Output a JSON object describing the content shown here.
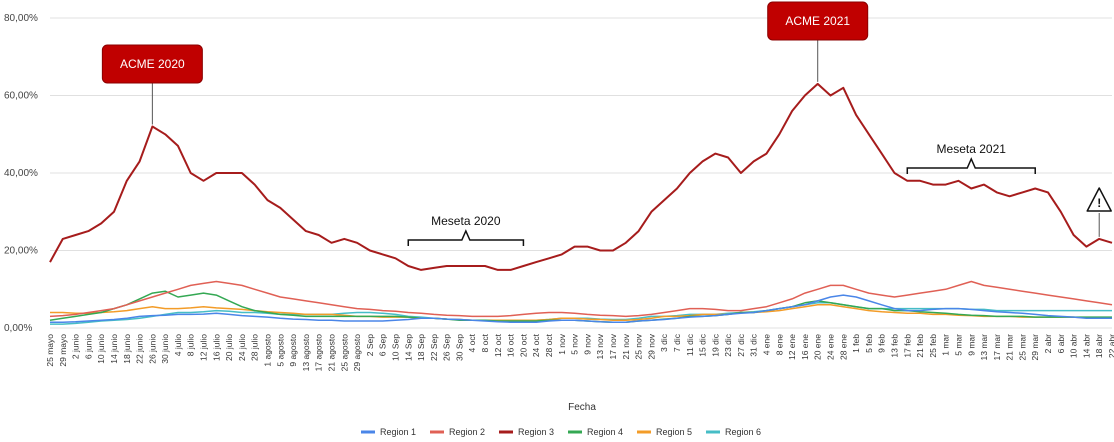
{
  "chart_data": {
    "type": "line",
    "xlabel": "Fecha",
    "ylabel": "",
    "ylim": [
      0,
      80
    ],
    "y_ticks": [
      "0,00%",
      "20,00%",
      "40,00%",
      "60,00%",
      "80,00%"
    ],
    "grid": true,
    "legend_position": "bottom",
    "x": [
      "25 mayo",
      "29 mayo",
      "2 junio",
      "6 junio",
      "10 junio",
      "14 junio",
      "18 junio",
      "22 junio",
      "26 junio",
      "30 junio",
      "4 julio",
      "8 julio",
      "12 julio",
      "16 julio",
      "20 julio",
      "24 julio",
      "28 julio",
      "1 agosto",
      "5 agosto",
      "9 agosto",
      "13 agosto",
      "17 agosto",
      "21 agosto",
      "25 agosto",
      "29 agosto",
      "2 Sep",
      "6 Sep",
      "10 Sep",
      "14 Sep",
      "18 Sep",
      "22 Sep",
      "26 Sep",
      "30 Sep",
      "4 oct",
      "8 oct",
      "12 oct",
      "16 oct",
      "20 oct",
      "24 oct",
      "28 oct",
      "1 nov",
      "5 nov",
      "9 nov",
      "13 nov",
      "17 nov",
      "21 nov",
      "25 nov",
      "29 nov",
      "3 dic",
      "7 dic",
      "11 dic",
      "15 dic",
      "19 dic",
      "23 dic",
      "27 dic",
      "31 dic",
      "4 ene",
      "8 ene",
      "12 ene",
      "16 ene",
      "20 ene",
      "24 ene",
      "28 ene",
      "1 feb",
      "5 feb",
      "9 feb",
      "13 feb",
      "17 feb",
      "21 feb",
      "25 feb",
      "1 mar",
      "5 mar",
      "9 mar",
      "13 mar",
      "17 mar",
      "21 mar",
      "25 mar",
      "29 mar",
      "2 abr",
      "6 abr",
      "10 abr",
      "14 abr",
      "18 abr",
      "22 abr"
    ],
    "series": [
      {
        "name": "Region 1",
        "color": "#4a86e8",
        "values": [
          1.5,
          1.5,
          1.6,
          1.8,
          2,
          2.2,
          2.5,
          3,
          3.2,
          3.3,
          3.5,
          3.5,
          3.6,
          3.8,
          3.5,
          3.2,
          3,
          2.8,
          2.5,
          2.3,
          2.2,
          2,
          2,
          1.8,
          1.8,
          1.8,
          1.8,
          2,
          2.2,
          2.5,
          2.5,
          2.3,
          2.2,
          2,
          1.8,
          1.6,
          1.5,
          1.5,
          1.5,
          1.8,
          2,
          2,
          1.8,
          1.6,
          1.5,
          1.5,
          1.8,
          2,
          2.2,
          2.5,
          2.8,
          3,
          3.2,
          3.5,
          3.8,
          4,
          4.5,
          5,
          5.5,
          6,
          7,
          8,
          8.5,
          8,
          7,
          6,
          5,
          4.5,
          4.5,
          4.8,
          5,
          5,
          4.8,
          4.5,
          4.2,
          4,
          3.8,
          3.5,
          3.2,
          3,
          2.8,
          2.5,
          2.5,
          2.5
        ]
      },
      {
        "name": "Region 2",
        "color": "#e06055",
        "values": [
          3,
          3.2,
          3.5,
          4,
          4.5,
          5,
          6,
          7,
          8,
          9,
          10,
          11,
          11.5,
          12,
          11.5,
          11,
          10,
          9,
          8,
          7.5,
          7,
          6.5,
          6,
          5.5,
          5,
          4.8,
          4.5,
          4.3,
          4,
          3.8,
          3.5,
          3.3,
          3.2,
          3,
          3,
          3,
          3.2,
          3.5,
          3.8,
          4,
          4,
          3.8,
          3.5,
          3.3,
          3.2,
          3,
          3.2,
          3.5,
          4,
          4.5,
          5,
          5,
          4.8,
          4.5,
          4.5,
          5,
          5.5,
          6.5,
          7.5,
          9,
          10,
          11,
          11,
          10,
          9,
          8.5,
          8,
          8.5,
          9,
          9.5,
          10,
          11,
          12,
          11,
          10.5,
          10,
          9.5,
          9,
          8.5,
          8,
          7.5,
          7,
          6.5,
          6
        ]
      },
      {
        "name": "Region 3",
        "color": "#a61c1c",
        "values": [
          17,
          23,
          24,
          25,
          27,
          30,
          38,
          43,
          52,
          50,
          47,
          40,
          38,
          40,
          40,
          40,
          37,
          33,
          31,
          28,
          25,
          24,
          22,
          23,
          22,
          20,
          19,
          18,
          16,
          15,
          15.5,
          16,
          16,
          16,
          16,
          15,
          15,
          16,
          17,
          18,
          19,
          21,
          21,
          20,
          20,
          22,
          25,
          30,
          33,
          36,
          40,
          43,
          45,
          44,
          40,
          43,
          45,
          50,
          56,
          60,
          63,
          60,
          62,
          55,
          50,
          45,
          40,
          38,
          38,
          37,
          37,
          38,
          36,
          37,
          35,
          34,
          35,
          36,
          35,
          30,
          24,
          21,
          23,
          22
        ]
      },
      {
        "name": "Region 4",
        "color": "#34a853",
        "values": [
          2,
          2.5,
          3,
          3.5,
          4,
          5,
          6,
          7.5,
          9,
          9.5,
          8,
          8.5,
          9,
          8.5,
          7,
          5.5,
          4.5,
          4,
          3.5,
          3.3,
          3,
          3,
          3,
          3,
          3,
          3,
          3,
          3,
          2.8,
          2.5,
          2.5,
          2.3,
          2,
          2,
          2,
          1.8,
          1.8,
          1.8,
          1.8,
          2,
          2,
          2,
          1.8,
          1.6,
          1.5,
          1.5,
          1.8,
          2,
          2.3,
          2.5,
          3,
          3,
          3.2,
          3.5,
          4,
          4,
          4.5,
          5,
          5.5,
          6.5,
          7,
          6.5,
          6,
          5.5,
          5,
          5,
          4.5,
          4.5,
          4.2,
          4,
          3.8,
          3.5,
          3.3,
          3.2,
          3,
          3,
          3,
          2.8,
          2.8,
          2.8,
          2.8,
          2.8,
          2.8,
          2.8
        ]
      },
      {
        "name": "Region 5",
        "color": "#f39c28",
        "values": [
          4,
          4,
          3.8,
          3.8,
          4,
          4.2,
          4.5,
          5,
          5.5,
          5,
          5,
          5.2,
          5.5,
          5.2,
          5,
          4.8,
          4.5,
          4.2,
          4,
          3.8,
          3.5,
          3.5,
          3.5,
          3.3,
          3,
          3,
          2.8,
          2.8,
          2.8,
          2.5,
          2.5,
          2.3,
          2.2,
          2,
          2,
          2,
          2,
          2,
          2,
          2.2,
          2.5,
          2.5,
          2.3,
          2.2,
          2,
          2,
          2.2,
          2.5,
          3,
          3,
          3.2,
          3.5,
          3.5,
          3.5,
          4,
          4,
          4.2,
          4.5,
          5,
          5.5,
          6,
          6,
          5.5,
          5,
          4.5,
          4.2,
          4,
          3.8,
          3.8,
          3.5,
          3.5,
          3.3,
          3.2,
          3,
          3,
          3,
          2.8,
          2.8,
          2.8,
          2.8,
          2.8,
          2.6,
          2.6,
          2.6
        ]
      },
      {
        "name": "Region 6",
        "color": "#46bdc6",
        "values": [
          1,
          1,
          1.2,
          1.5,
          1.8,
          2,
          2.2,
          2.5,
          3,
          3.5,
          4,
          4,
          4.2,
          4.5,
          4.3,
          4,
          4,
          3.8,
          3.5,
          3.5,
          3.5,
          3.5,
          3.5,
          3.8,
          4,
          4,
          3.8,
          3.5,
          3,
          2.8,
          2.5,
          2.3,
          2.2,
          2,
          2,
          2,
          2,
          2,
          2,
          2.2,
          2.5,
          2.5,
          2.5,
          2.3,
          2.2,
          2.2,
          2.5,
          3,
          3,
          3.2,
          3.5,
          3.5,
          3.5,
          3.8,
          4,
          4.2,
          4.5,
          5,
          5.5,
          6,
          6.5,
          6.5,
          6,
          5.5,
          5,
          5,
          5,
          5,
          5,
          5,
          5,
          5,
          4.8,
          4.8,
          4.5,
          4.5,
          4.5,
          4.5,
          4.5,
          4.5,
          4.5,
          4.5,
          4.5,
          4.5
        ]
      }
    ],
    "annotations": [
      {
        "id": "acme2020",
        "label": "ACME 2020",
        "style": "callout",
        "x_index": 8
      },
      {
        "id": "acme2021",
        "label": "ACME 2021",
        "style": "callout",
        "x_index": 60
      },
      {
        "id": "meseta2020",
        "label": "Meseta 2020",
        "style": "bracket",
        "x_start_index": 28,
        "x_end_index": 37
      },
      {
        "id": "meseta2021",
        "label": "Meseta 2021",
        "style": "bracket",
        "x_start_index": 67,
        "x_end_index": 77
      },
      {
        "id": "warning",
        "label": "!",
        "style": "warning",
        "x_index": 82
      }
    ],
    "colors": {
      "callout_fill": "#c00000",
      "grid": "#e0e0e0"
    }
  }
}
